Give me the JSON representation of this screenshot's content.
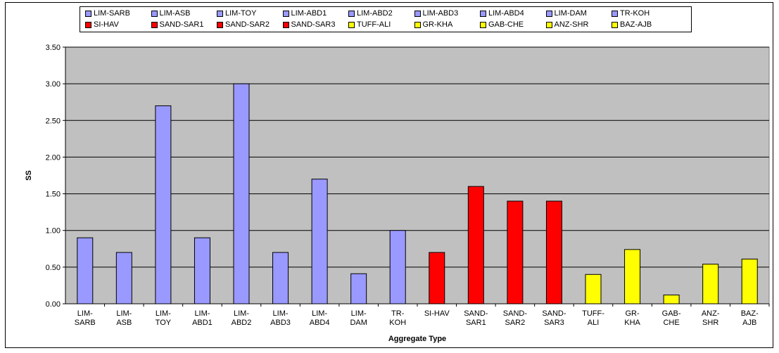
{
  "chart_data": {
    "type": "bar",
    "xlabel": "Aggregate Type",
    "ylabel": "SS",
    "ylim": [
      0,
      3.5
    ],
    "yticks": [
      "0.00",
      "0.50",
      "1.00",
      "1.50",
      "2.00",
      "2.50",
      "3.00",
      "3.50"
    ],
    "grid": true,
    "legend_position": "top",
    "plot_background": "#c0c0c0",
    "categories": [
      [
        "LIM-",
        "SARB"
      ],
      [
        "LIM-",
        "ASB"
      ],
      [
        "LIM-",
        "TOY"
      ],
      [
        "LIM-",
        "ABD1"
      ],
      [
        "LIM-",
        "ABD2"
      ],
      [
        "LIM-",
        "ABD3"
      ],
      [
        "LIM-",
        "ABD4"
      ],
      [
        "LIM-",
        "DAM"
      ],
      [
        "TR-",
        "KOH"
      ],
      [
        "SI-HAV",
        ""
      ],
      [
        "SAND-",
        "SAR1"
      ],
      [
        "SAND-",
        "SAR2"
      ],
      [
        "SAND-",
        "SAR3"
      ],
      [
        "TUFF-",
        "ALI"
      ],
      [
        "GR-",
        "KHA"
      ],
      [
        "GAB-",
        "CHE"
      ],
      [
        "ANZ-",
        "SHR"
      ],
      [
        "BAZ-",
        "AJB"
      ]
    ],
    "series": [
      {
        "name": "LIM-SARB",
        "value": 0.9,
        "color": "#9999ff"
      },
      {
        "name": "LIM-ASB",
        "value": 0.7,
        "color": "#9999ff"
      },
      {
        "name": "LIM-TOY",
        "value": 2.7,
        "color": "#9999ff"
      },
      {
        "name": "LIM-ABD1",
        "value": 0.9,
        "color": "#9999ff"
      },
      {
        "name": "LIM-ABD2",
        "value": 3.0,
        "color": "#9999ff"
      },
      {
        "name": "LIM-ABD3",
        "value": 0.7,
        "color": "#9999ff"
      },
      {
        "name": "LIM-ABD4",
        "value": 1.7,
        "color": "#9999ff"
      },
      {
        "name": "LIM-DAM",
        "value": 0.41,
        "color": "#9999ff"
      },
      {
        "name": "TR-KOH",
        "value": 1.0,
        "color": "#9999ff"
      },
      {
        "name": "SI-HAV",
        "value": 0.7,
        "color": "#ff0000"
      },
      {
        "name": "SAND-SAR1",
        "value": 1.6,
        "color": "#ff0000"
      },
      {
        "name": "SAND-SAR2",
        "value": 1.4,
        "color": "#ff0000"
      },
      {
        "name": "SAND-SAR3",
        "value": 1.4,
        "color": "#ff0000"
      },
      {
        "name": "TUFF-ALI",
        "value": 0.4,
        "color": "#ffff00"
      },
      {
        "name": "GR-KHA",
        "value": 0.74,
        "color": "#ffff00"
      },
      {
        "name": "GAB-CHE",
        "value": 0.12,
        "color": "#ffff00"
      },
      {
        "name": "ANZ-SHR",
        "value": 0.54,
        "color": "#ffff00"
      },
      {
        "name": "BAZ-AJB",
        "value": 0.61,
        "color": "#ffff00"
      }
    ]
  }
}
